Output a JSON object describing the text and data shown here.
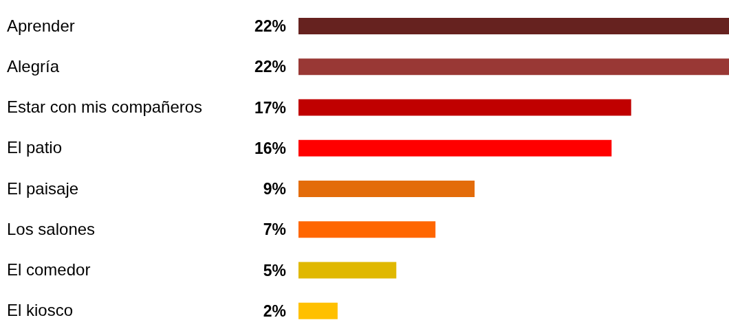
{
  "chart_data": {
    "type": "bar",
    "orientation": "horizontal",
    "categories": [
      "Aprender",
      "Alegría",
      "Estar con mis compañeros",
      "El patio",
      "El paisaje",
      "Los salones",
      "El comedor",
      "El kiosco"
    ],
    "values": [
      22,
      22,
      17,
      16,
      9,
      7,
      5,
      2
    ],
    "colors": [
      "#66221f",
      "#993835",
      "#c00000",
      "#ff0000",
      "#e36c0a",
      "#ff6600",
      "#e0b800",
      "#ffc000"
    ],
    "value_labels": [
      "22%",
      "22%",
      "17%",
      "16%",
      "9%",
      "7%",
      "5%",
      "2%"
    ],
    "grid": false,
    "legend": false
  }
}
